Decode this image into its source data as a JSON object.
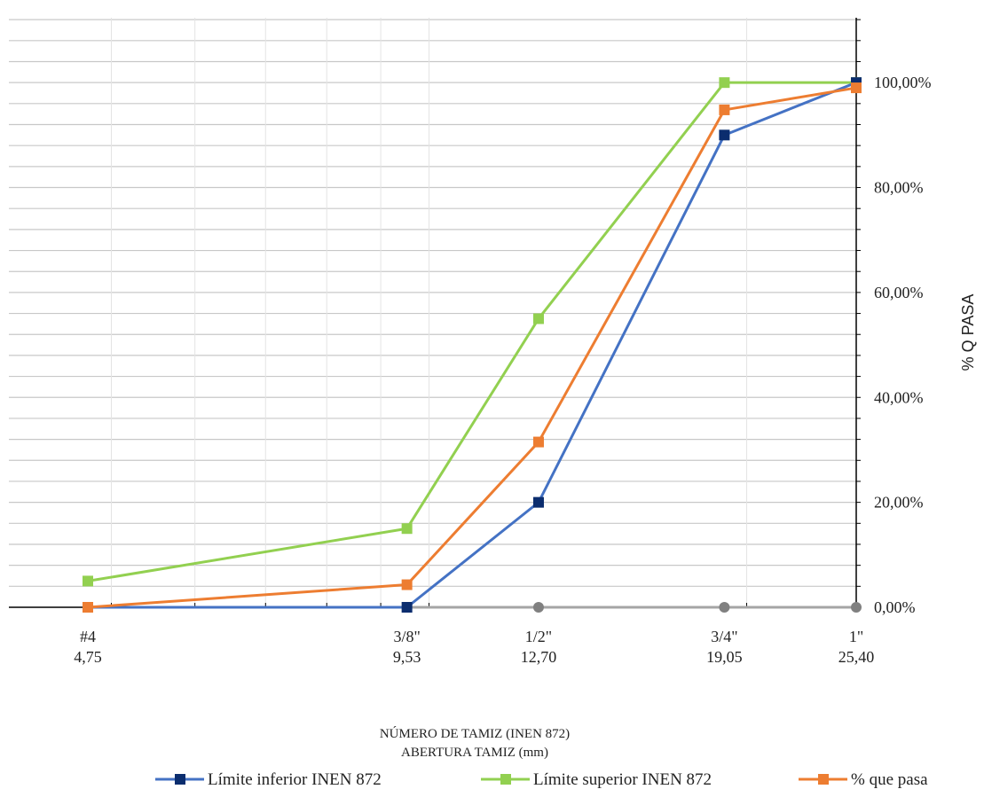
{
  "chart_data": {
    "type": "line",
    "x_axis": {
      "scale": "log",
      "ticks": [
        {
          "value": 4.75,
          "sieve": "#4",
          "size": "4,75"
        },
        {
          "value": 9.53,
          "sieve": "3/8\"",
          "size": "9,53"
        },
        {
          "value": 12.7,
          "sieve": "1/2\"",
          "size": "12,70"
        },
        {
          "value": 19.05,
          "sieve": "3/4\"",
          "size": "19,05"
        },
        {
          "value": 25.4,
          "sieve": "1\"",
          "size": "25,40"
        }
      ],
      "title_line1": "NÚMERO DE TAMIZ (INEN 872)",
      "title_line2": "ABERTURA TAMIZ (mm)"
    },
    "y_axis": {
      "label": "% Q PASA",
      "position": "right",
      "ylim": [
        0,
        100
      ],
      "major_ticks": [
        0,
        20,
        40,
        60,
        80,
        100
      ],
      "major_labels": [
        "0,00%",
        "20,00%",
        "40,00%",
        "60,00%",
        "80,00%",
        "100,00%"
      ],
      "minor_step": 4
    },
    "grid": {
      "horizontal": true,
      "vertical": true
    },
    "series": [
      {
        "name": "Límite inferior INEN 872",
        "color": "#4472c4",
        "marker_color": "#0b2d6e",
        "values": [
          0,
          0,
          20,
          90,
          100
        ]
      },
      {
        "name": "Límite superior INEN 872",
        "color": "#92d050",
        "marker_color": "#92d050",
        "values": [
          5,
          15,
          55,
          100,
          100
        ]
      },
      {
        "name": "% que pasa",
        "color": "#ed7d31",
        "marker_color": "#ed7d31",
        "values": [
          0,
          4.3,
          31.5,
          94.8,
          99
        ]
      }
    ],
    "baseline": {
      "color": "#a5a5a5",
      "marker_color": "#808080",
      "values": [
        0,
        0,
        0,
        0,
        0
      ]
    },
    "legend": {
      "placement": "bottom"
    }
  }
}
